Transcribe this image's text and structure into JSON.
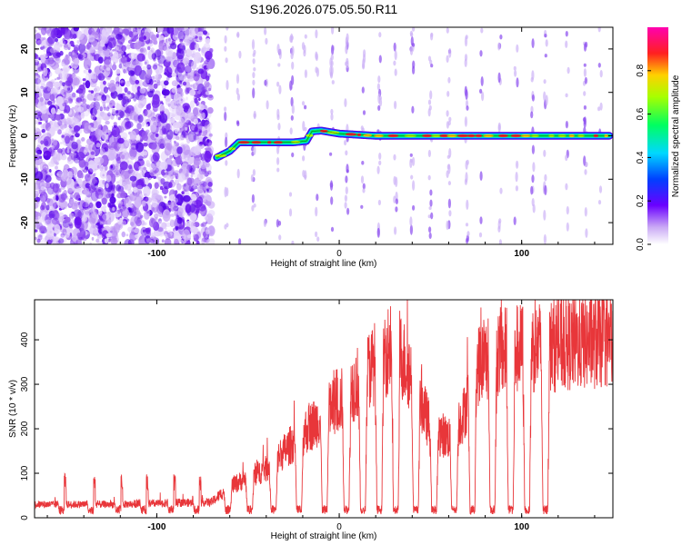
{
  "chart_data": [
    {
      "type": "heatmap",
      "title": "S196.2026.075.05.50.R11",
      "xlabel": "Height of straight line (km)",
      "ylabel": "Frequency (Hz)",
      "xlim": [
        -167,
        150
      ],
      "ylim": [
        -25,
        25
      ],
      "xticks": [
        -100,
        0,
        100
      ],
      "yticks": [
        -20,
        -10,
        0,
        10,
        20
      ],
      "colorbar": {
        "label": "Normalized spectral amplitude",
        "range": [
          0,
          1
        ],
        "ticks": [
          0.0,
          0.2,
          0.4,
          0.6,
          0.8
        ]
      },
      "noise_region_x": [
        -167,
        -70
      ],
      "track": {
        "x": [
          -67,
          -60,
          -55,
          -45,
          -35,
          -25,
          -18,
          -15,
          -10,
          0,
          20,
          50,
          80,
          110,
          130,
          148
        ],
        "freq_hz": [
          -5,
          -3.5,
          -1.5,
          -1.5,
          -1.5,
          -1.5,
          -1.2,
          1,
          1.2,
          0.5,
          0,
          0,
          0,
          0,
          0,
          0
        ]
      }
    },
    {
      "type": "line",
      "xlabel": "Height of straight line (km)",
      "ylabel": "SNR (10 * v/v)",
      "xlim": [
        -167,
        150
      ],
      "ylim": [
        0,
        490
      ],
      "xticks": [
        -100,
        0,
        100
      ],
      "yticks": [
        0,
        100,
        200,
        300,
        400
      ],
      "series": [
        {
          "name": "SNR",
          "color": "#e8363a",
          "envelope_x": [
            -167,
            -120,
            -70,
            -60,
            -40,
            -20,
            0,
            20,
            30,
            40,
            50,
            60,
            68,
            75,
            85,
            100,
            150
          ],
          "envelope_y": [
            30,
            30,
            35,
            70,
            110,
            190,
            260,
            350,
            390,
            320,
            200,
            180,
            230,
            340,
            370,
            380,
            400
          ],
          "dropout_x": [
            -152,
            -136,
            -121,
            -107,
            -92,
            -78,
            -61,
            -49,
            -36,
            -22,
            -8,
            4,
            13,
            22,
            31,
            42,
            52,
            63,
            73,
            84,
            94,
            103,
            113
          ]
        }
      ]
    }
  ]
}
